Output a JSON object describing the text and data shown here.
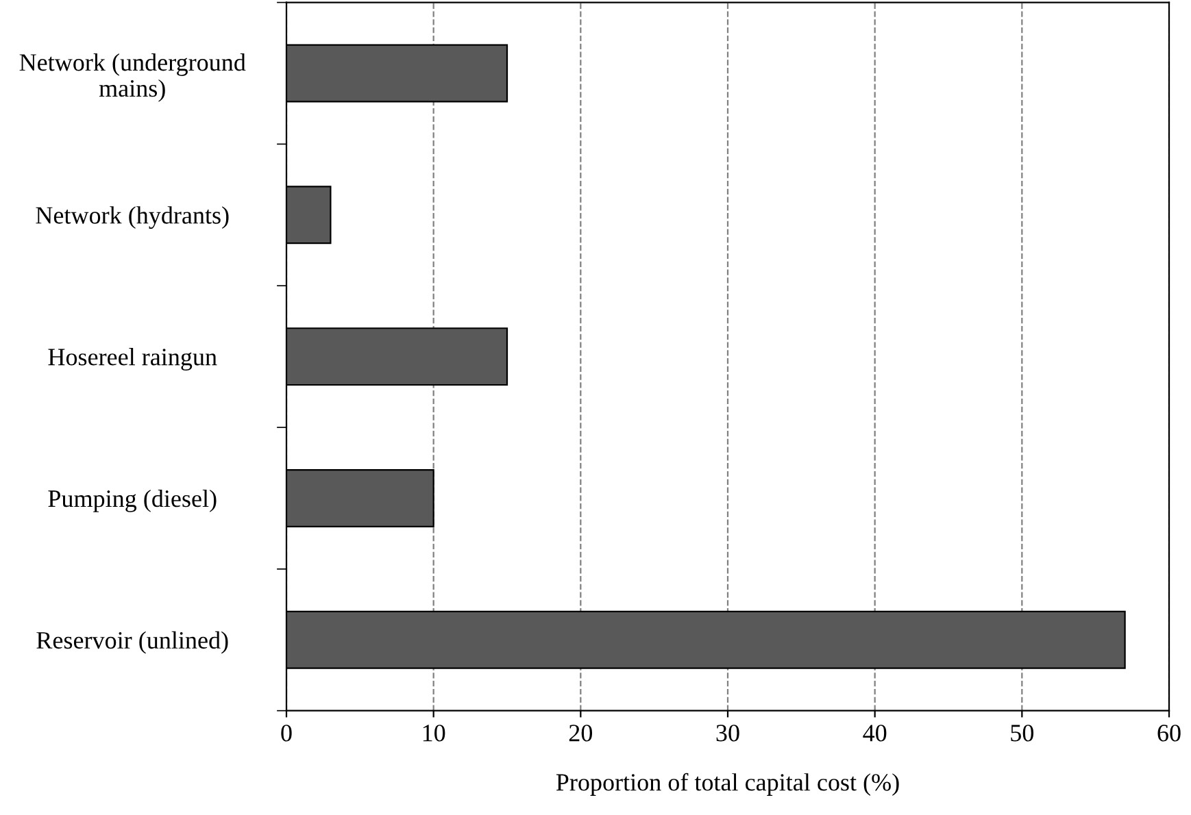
{
  "chart_data": {
    "type": "bar",
    "orientation": "horizontal",
    "xlabel": "Proportion of total capital cost (%)",
    "categories": [
      "Network (underground\nmains)",
      "Network (hydrants)",
      "Hosereel raingun",
      "Pumping (diesel)",
      "Reservoir (unlined)"
    ],
    "values": [
      15,
      3,
      15,
      10,
      57
    ],
    "color": "#595959",
    "xlim": [
      0,
      60
    ],
    "xticks": [
      0,
      10,
      20,
      30,
      40,
      50,
      60
    ],
    "grid": "x",
    "line_style": "dashed"
  }
}
